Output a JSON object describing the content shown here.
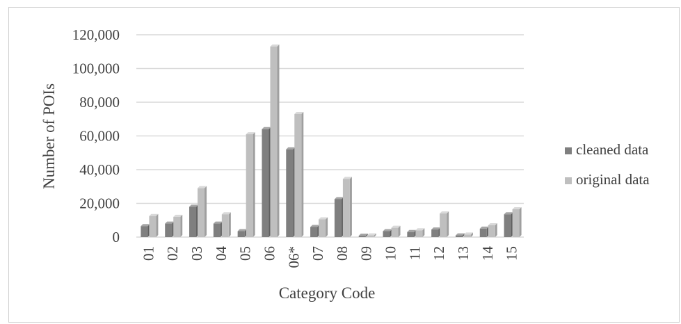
{
  "chart_data": {
    "type": "bar",
    "title": "",
    "xlabel": "Category Code",
    "ylabel": "Number of POIs",
    "ylim": [
      0,
      120000
    ],
    "yticks": [
      0,
      20000,
      40000,
      60000,
      80000,
      100000,
      120000
    ],
    "ytick_labels": [
      "0",
      "20,000",
      "40,000",
      "60,000",
      "80,000",
      "100,000",
      "120,000"
    ],
    "categories": [
      "01",
      "02",
      "03",
      "04",
      "05",
      "06",
      "06*",
      "07",
      "08",
      "09",
      "10",
      "11",
      "12",
      "13",
      "14",
      "15"
    ],
    "series": [
      {
        "name": "cleaned data",
        "color": "#7f7f7f",
        "values": [
          6500,
          8000,
          18000,
          8000,
          3500,
          64000,
          52000,
          6000,
          22500,
          800,
          3500,
          3000,
          4500,
          1000,
          5000,
          13500
        ]
      },
      {
        "name": "original data",
        "color": "#bfbfbf",
        "values": [
          12500,
          12000,
          29000,
          13500,
          61000,
          113000,
          73000,
          10500,
          34500,
          1000,
          5500,
          4000,
          14000,
          1500,
          7000,
          16500
        ]
      }
    ],
    "grid": true,
    "legend_position": "right"
  }
}
